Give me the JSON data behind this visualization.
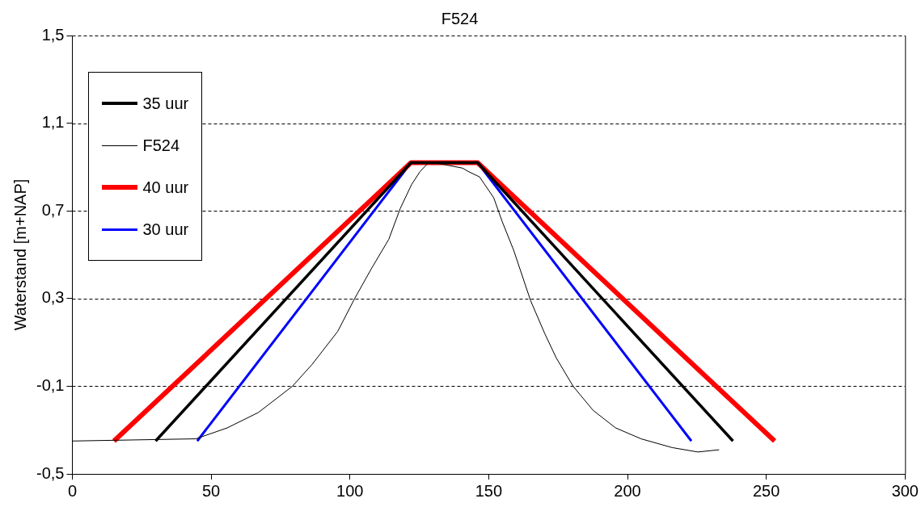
{
  "chart_data": {
    "type": "line",
    "title": "F524",
    "ylabel": "Waterstand [m+NAP]",
    "xlim": [
      0,
      300
    ],
    "xticks": [
      0,
      50,
      100,
      150,
      200,
      250,
      300
    ],
    "ylim": [
      -0.5,
      1.5
    ],
    "yticks": [
      {
        "value": -0.5,
        "label": "-0,5"
      },
      {
        "value": -0.1,
        "label": "-0,1"
      },
      {
        "value": 0.3,
        "label": "0,3"
      },
      {
        "value": 0.7,
        "label": "0,7"
      },
      {
        "value": 1.1,
        "label": "1,1"
      },
      {
        "value": 1.5,
        "label": "1,5"
      }
    ],
    "grid": "y",
    "legend": "top left",
    "marker": "none",
    "series": [
      {
        "name": "35 uur",
        "color": "#000000",
        "x": [
          30,
          122,
          146,
          238
        ],
        "values": [
          -0.35,
          0.92,
          0.92,
          -0.35
        ]
      },
      {
        "name": "F524",
        "color": "#000000",
        "x": [
          0,
          44.5,
          55.8,
          67,
          79.3,
          86.4,
          95.6,
          101.7,
          107.9,
          114,
          118.1,
          122.2,
          125.3,
          128.3,
          132.4,
          140.6,
          142.6,
          146.7,
          151.8,
          154.9,
          159,
          165.1,
          170.2,
          174.3,
          180.4,
          187.6,
          195.7,
          204.9,
          216.1,
          225.3,
          233
        ],
        "values": [
          -0.35,
          -0.34,
          -0.29,
          -0.22,
          -0.1,
          0,
          0.15,
          0.3,
          0.44,
          0.57,
          0.71,
          0.82,
          0.88,
          0.92,
          0.915,
          0.895,
          0.88,
          0.855,
          0.76,
          0.65,
          0.52,
          0.29,
          0.14,
          0.03,
          -0.1,
          -0.21,
          -0.29,
          -0.34,
          -0.38,
          -0.4,
          -0.39
        ]
      },
      {
        "name": "40 uur",
        "color": "#ff0000",
        "x": [
          15,
          122,
          146,
          253
        ],
        "values": [
          -0.35,
          0.92,
          0.92,
          -0.35
        ]
      },
      {
        "name": "30 uur",
        "color": "#0000ff",
        "x": [
          45,
          122,
          146,
          223
        ],
        "values": [
          -0.35,
          0.92,
          0.92,
          -0.35
        ]
      }
    ]
  }
}
